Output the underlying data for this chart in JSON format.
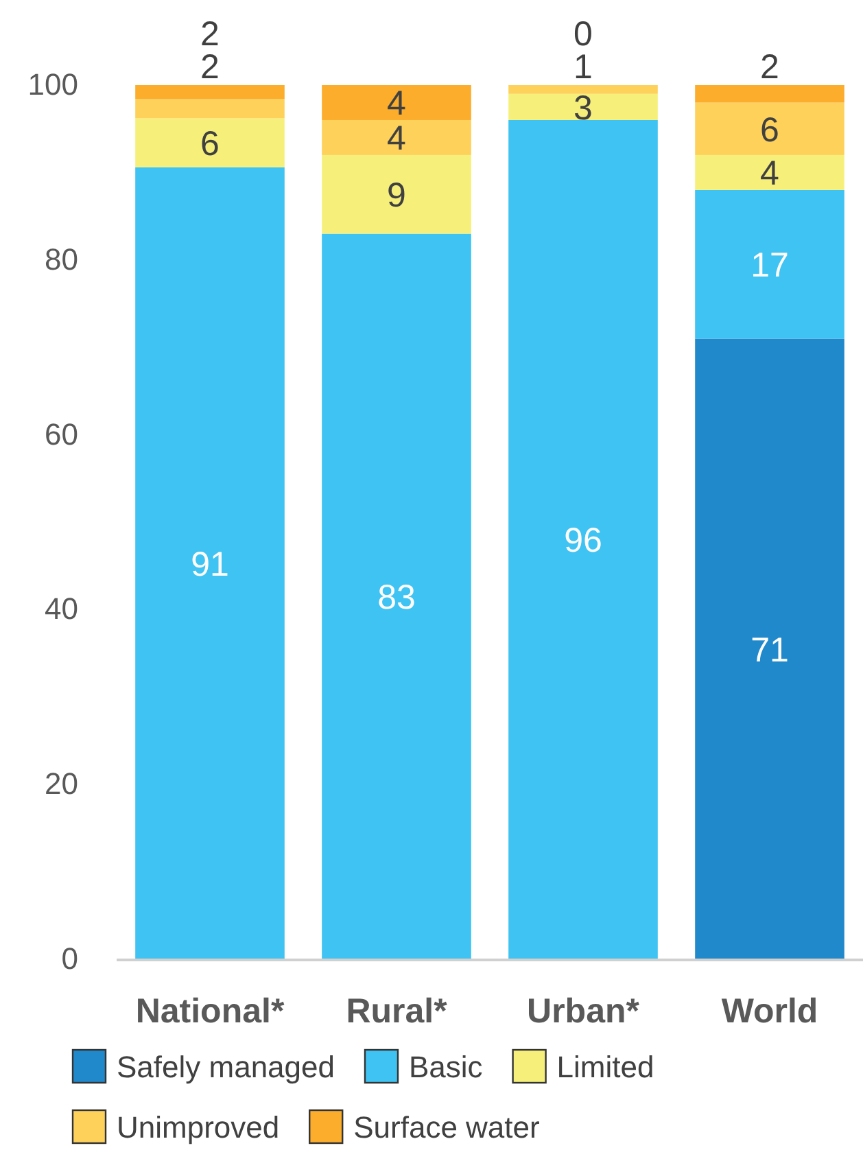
{
  "chart_data": {
    "type": "bar",
    "stacked": true,
    "categories": [
      "National*",
      "Rural*",
      "Urban*",
      "World"
    ],
    "series": [
      {
        "name": "Safely managed",
        "color": "#2089cb",
        "values": [
          null,
          null,
          null,
          71
        ],
        "value_labels": [
          null,
          null,
          null,
          "71"
        ]
      },
      {
        "name": "Basic",
        "color": "#3ec3f2",
        "values": [
          90.6,
          83,
          96,
          17
        ],
        "value_labels": [
          "91",
          "83",
          "96",
          "17"
        ]
      },
      {
        "name": "Limited",
        "color": "#f6f07a",
        "values": [
          5.6,
          9,
          3,
          4
        ],
        "value_labels": [
          "6",
          "9",
          "3",
          "4"
        ]
      },
      {
        "name": "Unimproved",
        "color": "#fdd15a",
        "values": [
          2.2,
          4,
          1,
          6
        ],
        "value_labels": [
          "2",
          "4",
          "1",
          "6"
        ]
      },
      {
        "name": "Surface water",
        "color": "#fbad2b",
        "values": [
          1.6,
          4,
          0,
          2
        ],
        "value_labels": [
          "2",
          "4",
          "0",
          "2"
        ]
      }
    ],
    "ylim": [
      0,
      100
    ],
    "yticks": [
      0,
      20,
      40,
      60,
      80,
      100
    ],
    "legend": "bottom"
  }
}
